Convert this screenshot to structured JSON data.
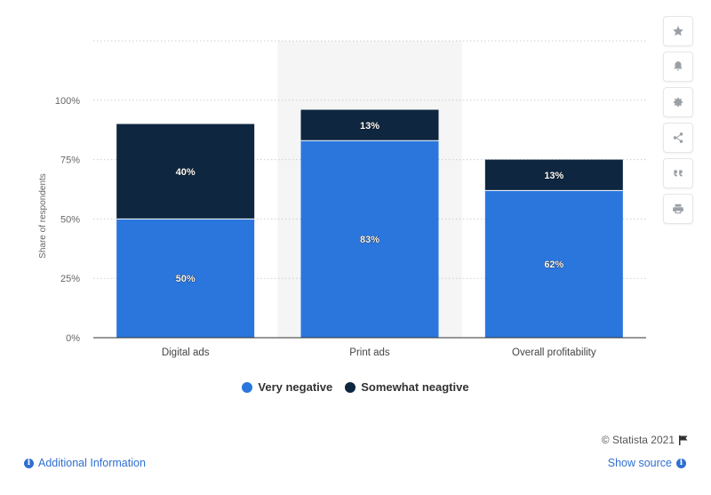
{
  "chart_data": {
    "type": "bar",
    "stacked": true,
    "categories": [
      "Digital ads",
      "Print ads",
      "Overall profitability"
    ],
    "series": [
      {
        "name": "Very negative",
        "values": [
          50,
          83,
          62
        ],
        "color": "#2a76dd"
      },
      {
        "name": "Somewhat neagtive",
        "values": [
          40,
          13,
          13
        ],
        "color": "#0e2640"
      }
    ],
    "data_labels": [
      [
        "50%",
        "83%",
        "62%"
      ],
      [
        "40%",
        "13%",
        "13%"
      ]
    ],
    "ylabel": "Share of respondents",
    "yticks": [
      "0%",
      "25%",
      "50%",
      "75%",
      "100%"
    ],
    "ylim": [
      0,
      125
    ],
    "grid": true,
    "highlighted_category": 1,
    "legend_position": "bottom"
  },
  "toolbar": {
    "icons": [
      "star-icon",
      "bell-icon",
      "gear-icon",
      "share-icon",
      "quote-icon",
      "print-icon"
    ]
  },
  "footer": {
    "credit": "© Statista 2021",
    "additional_info": "Additional Information",
    "show_source": "Show source"
  }
}
